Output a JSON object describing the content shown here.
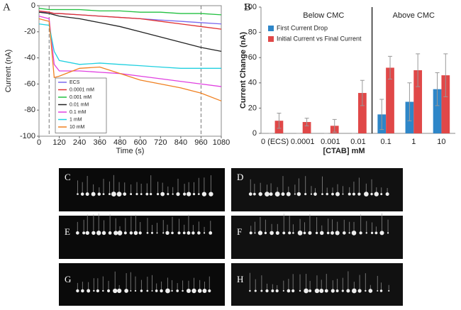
{
  "chart_data": [
    {
      "type": "line",
      "panel_label": "A",
      "x_label": "Time (s)",
      "y_label": "Current (nA)",
      "x": [
        0,
        60,
        90,
        120,
        240,
        360,
        480,
        600,
        720,
        840,
        960,
        1080
      ],
      "xlim": [
        0,
        1080
      ],
      "xticks": [
        0,
        120,
        240,
        360,
        480,
        600,
        720,
        840,
        960,
        1080
      ],
      "ylim": [
        -100,
        0
      ],
      "yticks": [
        0,
        -20,
        -40,
        -60,
        -80,
        -100
      ],
      "markers": [
        60,
        960
      ],
      "series": [
        {
          "name": "ECS",
          "color": "#7b68ee",
          "values": [
            -5,
            -5,
            -6,
            -6,
            -7,
            -8,
            -9,
            -10,
            -11,
            -12,
            -13,
            -14
          ]
        },
        {
          "name": "0.0001 mM",
          "color": "#e03030",
          "values": [
            -4,
            -5,
            -6,
            -6,
            -7,
            -8,
            -9,
            -10,
            -12,
            -14,
            -16,
            -18
          ]
        },
        {
          "name": "0.001 mM",
          "color": "#22c040",
          "values": [
            -2,
            -3,
            -3,
            -3,
            -3,
            -4,
            -4,
            -5,
            -5,
            -6,
            -6,
            -7
          ]
        },
        {
          "name": "0.01 mM",
          "color": "#222222",
          "values": [
            -5,
            -6,
            -7,
            -8,
            -10,
            -13,
            -16,
            -20,
            -24,
            -28,
            -32,
            -35
          ]
        },
        {
          "name": "0.1 mM",
          "color": "#e040e0",
          "values": [
            -8,
            -10,
            -45,
            -50,
            -50,
            -51,
            -52,
            -54,
            -56,
            -58,
            -60,
            -62
          ]
        },
        {
          "name": "1 mM",
          "color": "#20d0e0",
          "values": [
            -14,
            -15,
            -35,
            -42,
            -45,
            -44,
            -45,
            -46,
            -47,
            -48,
            -48,
            -48
          ]
        },
        {
          "name": "10 mM",
          "color": "#f08020",
          "values": [
            -10,
            -12,
            -55,
            -54,
            -48,
            -47,
            -52,
            -57,
            -60,
            -63,
            -67,
            -73
          ]
        }
      ]
    },
    {
      "type": "bar",
      "panel_label": "B",
      "x_label": "[CTAB] mM",
      "y_label": "Current Change (nA)",
      "categories": [
        "0 (ECS)",
        "0.0001",
        "0.001",
        "0.01",
        "0.1",
        "1",
        "10"
      ],
      "ylim": [
        0,
        100
      ],
      "yticks": [
        0,
        20,
        40,
        60,
        80,
        100
      ],
      "annotations": [
        "Below CMC",
        "Above CMC"
      ],
      "series": [
        {
          "name": "First Current Drop",
          "color": "#2e86c8",
          "values": [
            0,
            0,
            0,
            0,
            15,
            25,
            35
          ],
          "errors": [
            0,
            0,
            0,
            0,
            12,
            15,
            13
          ]
        },
        {
          "name": "Initial Current vs Final Current",
          "color": "#e04848",
          "values": [
            10,
            9,
            6,
            32,
            52,
            50,
            46
          ],
          "errors": [
            6,
            3,
            5,
            10,
            9,
            13,
            17
          ]
        }
      ]
    }
  ],
  "images": [
    {
      "label": "C"
    },
    {
      "label": "D"
    },
    {
      "label": "E"
    },
    {
      "label": "F"
    },
    {
      "label": "G"
    },
    {
      "label": "H"
    }
  ]
}
